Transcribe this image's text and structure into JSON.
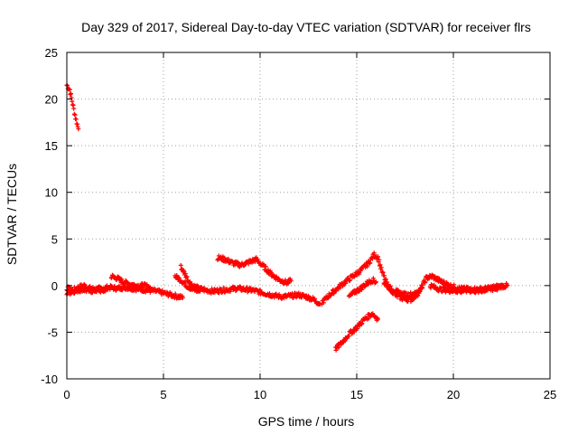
{
  "chart_data": {
    "type": "scatter",
    "title": "Day 329 of 2017, Sidereal Day-to-day VTEC variation (SDTVAR) for receiver flrs",
    "xlabel": "GPS time / hours",
    "ylabel": "SDTVAR / TECUs",
    "xlim": [
      0,
      25
    ],
    "ylim": [
      -10,
      25
    ],
    "xticks": [
      0,
      5,
      10,
      15,
      20,
      25
    ],
    "yticks": [
      -10,
      -5,
      0,
      5,
      10,
      15,
      20,
      25
    ],
    "grid": true,
    "marker_color": "#ff0000",
    "series": [
      {
        "name": "SDTVAR",
        "tracks": [
          [
            [
              0.0,
              21.5
            ],
            [
              0.15,
              21.0
            ],
            [
              0.3,
              19.5
            ],
            [
              0.45,
              18.0
            ],
            [
              0.6,
              16.8
            ]
          ],
          [
            [
              0.0,
              -0.3
            ],
            [
              0.3,
              -0.5
            ],
            [
              0.6,
              -0.2
            ],
            [
              0.9,
              0.0
            ],
            [
              1.2,
              -0.3
            ],
            [
              1.5,
              -0.4
            ],
            [
              1.8,
              -0.3
            ],
            [
              2.2,
              -0.2
            ],
            [
              2.6,
              -0.3
            ],
            [
              3.0,
              -0.2
            ],
            [
              3.4,
              -0.3
            ],
            [
              3.8,
              -0.4
            ],
            [
              4.2,
              -0.5
            ],
            [
              4.6,
              -0.6
            ],
            [
              5.0,
              -0.8
            ],
            [
              5.4,
              -1.0
            ],
            [
              5.8,
              -1.2
            ],
            [
              6.0,
              -1.3
            ]
          ],
          [
            [
              0.0,
              -0.8
            ],
            [
              0.4,
              -0.6
            ],
            [
              0.8,
              -0.4
            ],
            [
              1.2,
              -0.6
            ],
            [
              1.6,
              -0.5
            ],
            [
              2.0,
              -0.6
            ]
          ],
          [
            [
              2.3,
              1.0
            ],
            [
              2.6,
              0.8
            ],
            [
              2.9,
              0.4
            ],
            [
              3.2,
              0.2
            ],
            [
              3.6,
              0.0
            ],
            [
              4.0,
              0.0
            ],
            [
              4.3,
              -0.2
            ]
          ],
          [
            [
              5.6,
              1.0
            ],
            [
              5.9,
              0.6
            ],
            [
              6.2,
              0.0
            ],
            [
              6.5,
              -0.4
            ],
            [
              6.9,
              -0.6
            ]
          ],
          [
            [
              5.9,
              2.0
            ],
            [
              6.1,
              1.3
            ],
            [
              6.3,
              0.5
            ],
            [
              6.5,
              0.0
            ],
            [
              6.8,
              -0.3
            ],
            [
              7.2,
              -0.5
            ],
            [
              7.6,
              -0.6
            ],
            [
              8.0,
              -0.5
            ],
            [
              8.4,
              -0.4
            ],
            [
              8.8,
              -0.3
            ],
            [
              9.2,
              -0.4
            ],
            [
              9.6,
              -0.5
            ],
            [
              10.0,
              -0.7
            ],
            [
              10.4,
              -0.9
            ],
            [
              10.8,
              -1.1
            ],
            [
              11.2,
              -1.2
            ],
            [
              11.6,
              -1.1
            ],
            [
              12.0,
              -1.0
            ],
            [
              12.4,
              -1.2
            ],
            [
              12.8,
              -1.5
            ],
            [
              13.1,
              -2.0
            ]
          ],
          [
            [
              7.8,
              3.0
            ],
            [
              8.2,
              2.8
            ],
            [
              8.6,
              2.4
            ],
            [
              9.0,
              2.2
            ],
            [
              9.4,
              2.5
            ],
            [
              9.8,
              2.8
            ],
            [
              10.2,
              2.0
            ],
            [
              10.6,
              1.2
            ],
            [
              11.0,
              0.6
            ],
            [
              11.4,
              0.3
            ],
            [
              11.6,
              0.5
            ]
          ],
          [
            [
              13.2,
              -1.8
            ],
            [
              13.6,
              -1.0
            ],
            [
              14.0,
              -0.3
            ],
            [
              14.4,
              0.4
            ],
            [
              14.8,
              1.0
            ],
            [
              15.2,
              1.6
            ],
            [
              15.6,
              2.4
            ],
            [
              15.9,
              3.3
            ],
            [
              16.1,
              3.0
            ],
            [
              16.3,
              1.5
            ],
            [
              16.6,
              0.0
            ],
            [
              17.0,
              -1.0
            ],
            [
              17.4,
              -1.4
            ],
            [
              17.8,
              -1.5
            ],
            [
              18.2,
              -0.8
            ],
            [
              18.6,
              0.8
            ],
            [
              18.9,
              1.0
            ],
            [
              19.3,
              0.5
            ],
            [
              19.8,
              0.0
            ],
            [
              20.3,
              -0.3
            ],
            [
              20.8,
              -0.4
            ],
            [
              21.3,
              -0.4
            ],
            [
              21.8,
              -0.3
            ],
            [
              22.3,
              -0.1
            ],
            [
              22.8,
              0.0
            ]
          ],
          [
            [
              14.6,
              -1.2
            ],
            [
              14.9,
              -0.7
            ],
            [
              15.2,
              -0.3
            ],
            [
              15.5,
              0.2
            ],
            [
              15.8,
              0.6
            ],
            [
              16.0,
              0.4
            ]
          ],
          [
            [
              16.4,
              0.3
            ],
            [
              16.8,
              -0.4
            ],
            [
              17.2,
              -0.8
            ],
            [
              17.6,
              -1.0
            ],
            [
              18.0,
              -0.9
            ],
            [
              18.4,
              -0.2
            ]
          ],
          [
            [
              18.8,
              0.0
            ],
            [
              19.3,
              -0.4
            ],
            [
              19.8,
              -0.5
            ],
            [
              20.3,
              -0.6
            ],
            [
              20.8,
              -0.5
            ],
            [
              21.3,
              -0.6
            ],
            [
              21.8,
              -0.4
            ],
            [
              22.3,
              -0.3
            ]
          ],
          [
            [
              13.9,
              -6.8
            ],
            [
              14.2,
              -6.2
            ],
            [
              14.6,
              -5.2
            ],
            [
              15.0,
              -4.5
            ],
            [
              15.4,
              -3.6
            ],
            [
              15.8,
              -3.0
            ],
            [
              16.1,
              -3.6
            ]
          ]
        ]
      }
    ]
  }
}
